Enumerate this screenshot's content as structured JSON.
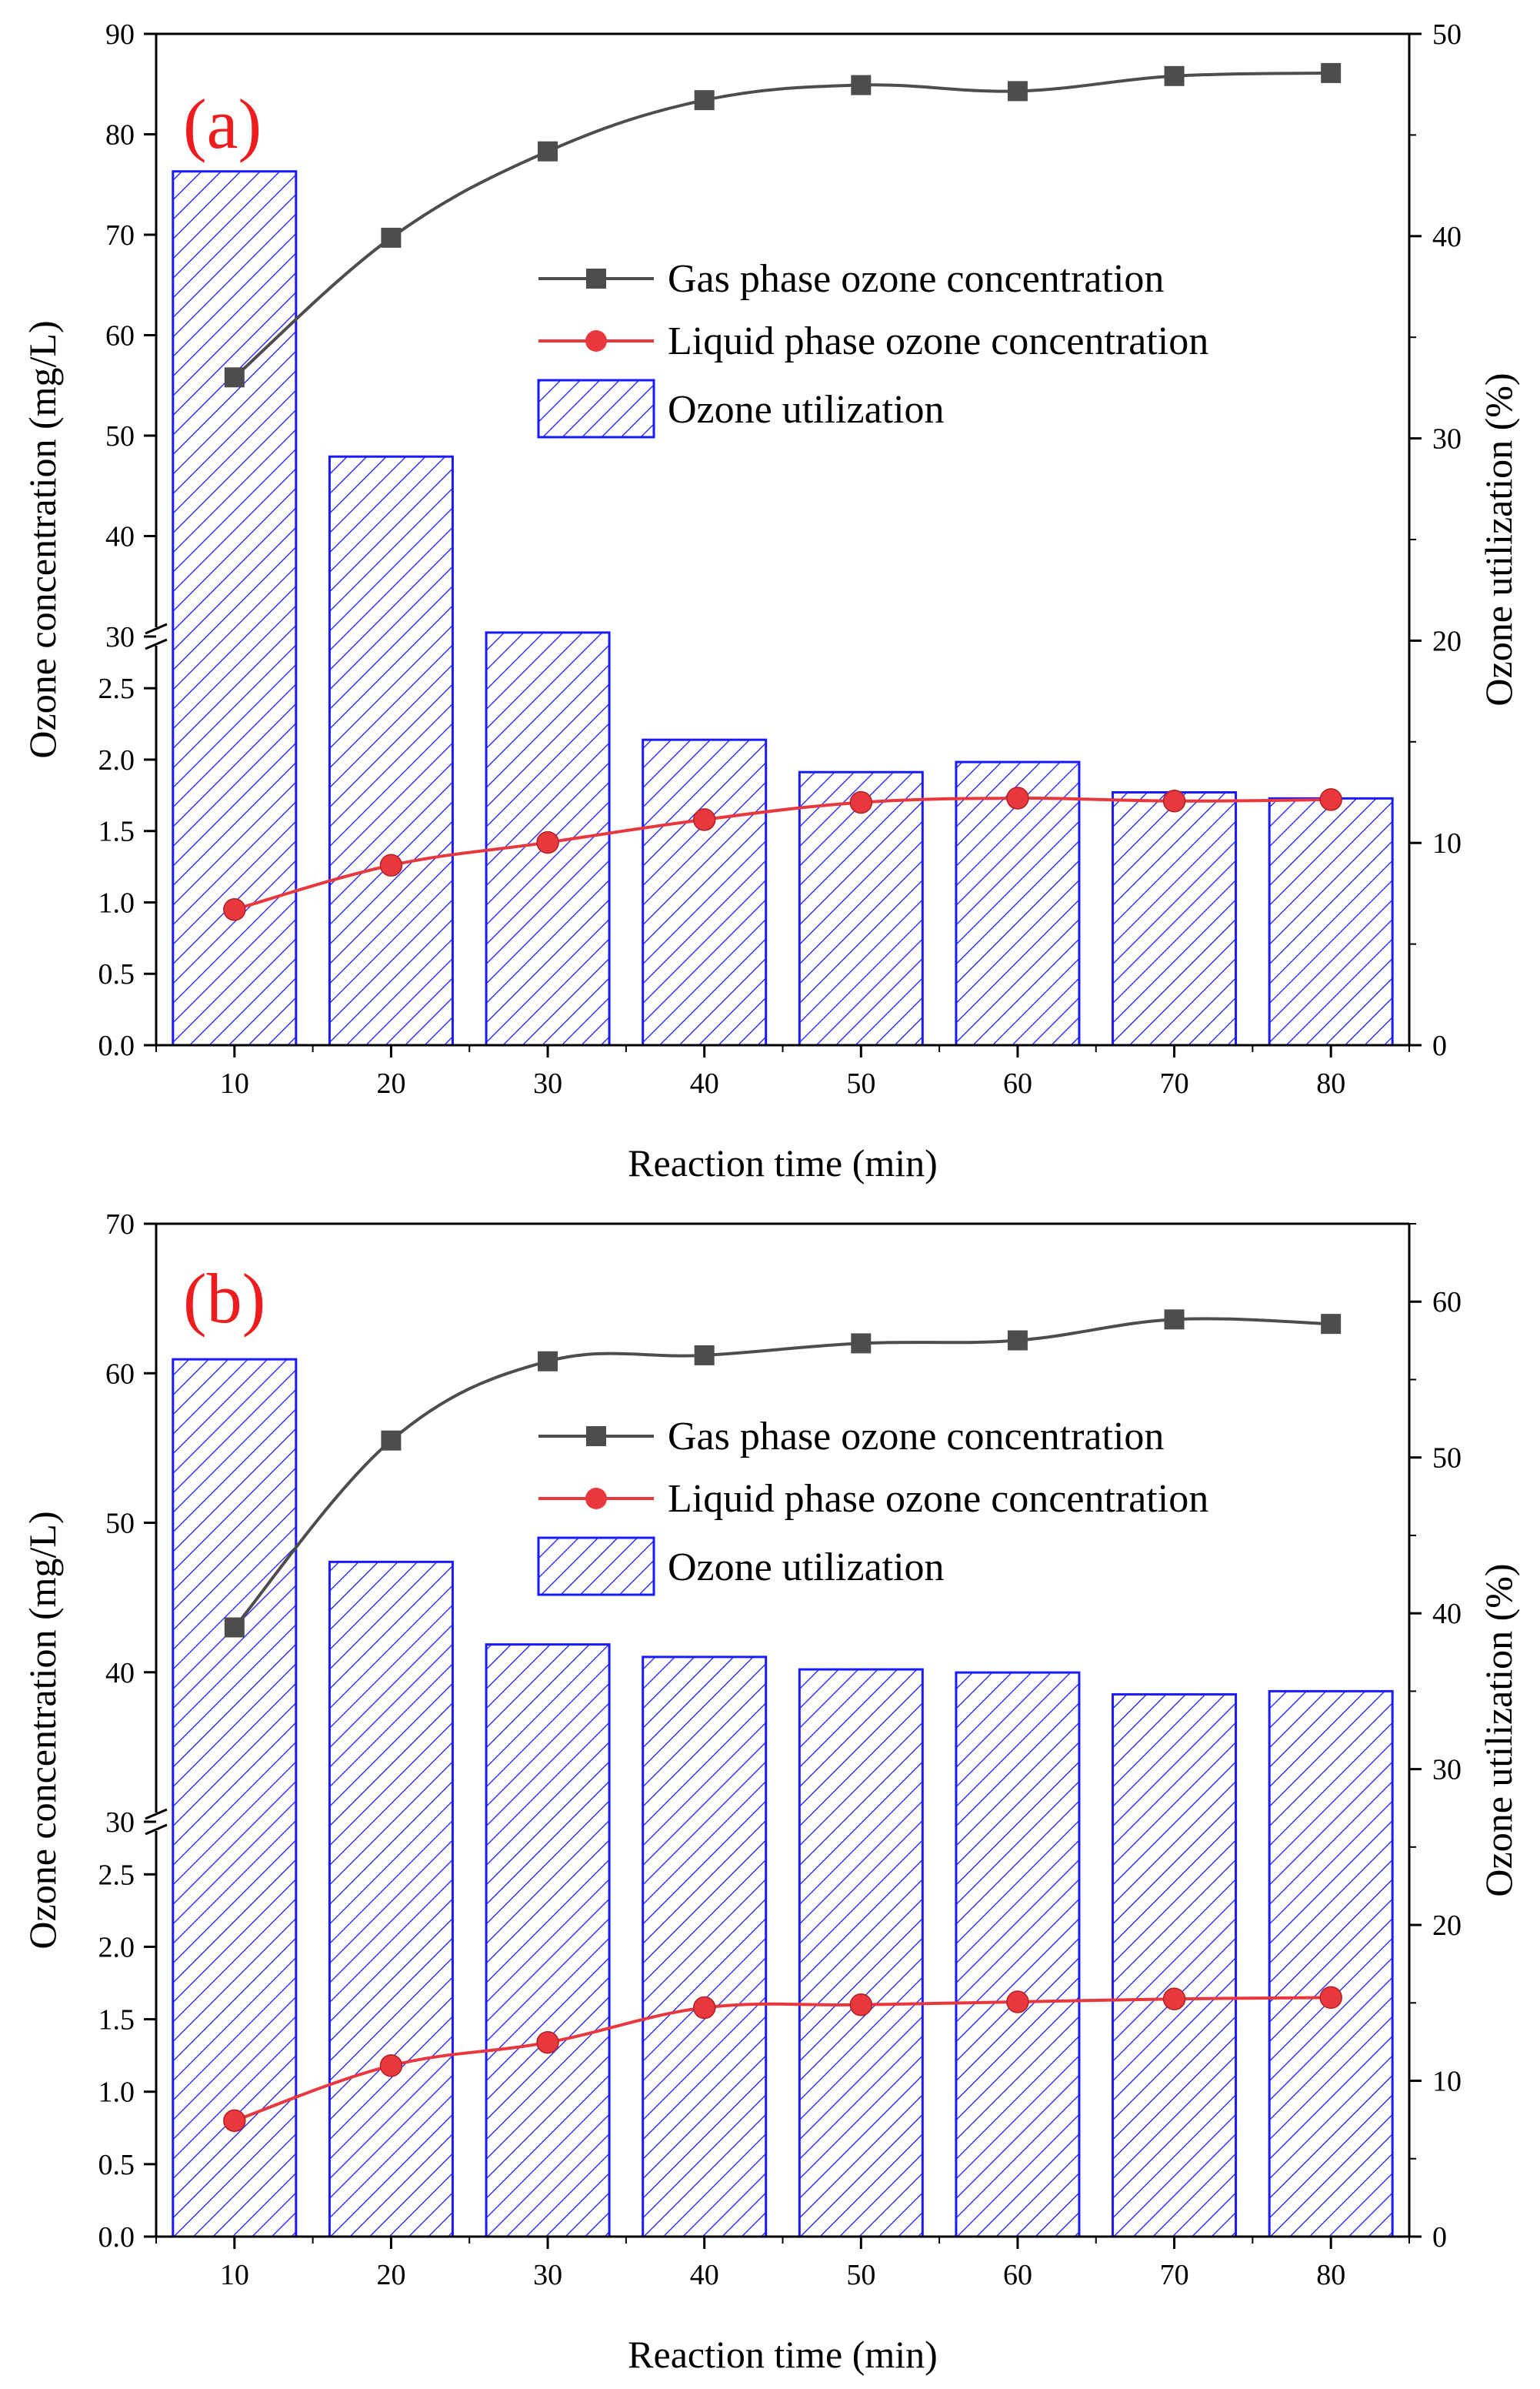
{
  "colors": {
    "gas_line": "#4d4d4d",
    "liquid_line": "#e8383d",
    "bar_edge": "#1a1aff",
    "panel_label": "#ee1c1c",
    "axis": "#000000"
  },
  "chart_data": [
    {
      "panel_label": "(a)",
      "type": "bar+line",
      "xlabel": "Reaction time (min)",
      "ylabel_left": "Ozone concentration (mg/L)",
      "ylabel_right": "Ozone utilization (%)",
      "x": [
        10,
        20,
        30,
        40,
        50,
        60,
        70,
        80
      ],
      "x_tick_labels": [
        "10",
        "20",
        "30",
        "40",
        "50",
        "60",
        "70",
        "80"
      ],
      "left_axis_broken": true,
      "left_lower_ylim": [
        0,
        2.9
      ],
      "left_lower_ticks": [
        "0.0",
        "0.5",
        "1.0",
        "1.5",
        "2.0",
        "2.5"
      ],
      "left_upper_ylim": [
        30,
        90
      ],
      "left_upper_ticks": [
        "30",
        "40",
        "50",
        "60",
        "70",
        "80",
        "90"
      ],
      "right_ylim": [
        0,
        50
      ],
      "right_ticks": [
        "0",
        "10",
        "20",
        "30",
        "40",
        "50"
      ],
      "legend": [
        "Gas phase ozone concentration",
        "Liquid phase ozone concentration",
        "Ozone utilization"
      ],
      "series": [
        {
          "name": "Gas phase ozone concentration",
          "kind": "line",
          "marker": "square",
          "axis": "left-upper",
          "values": [
            55.8,
            69.7,
            78.3,
            83.4,
            84.9,
            84.3,
            85.8,
            86.1
          ]
        },
        {
          "name": "Liquid phase ozone concentration",
          "kind": "line",
          "marker": "circle",
          "axis": "left-lower",
          "values": [
            0.95,
            1.26,
            1.42,
            1.58,
            1.7,
            1.73,
            1.71,
            1.72
          ]
        },
        {
          "name": "Ozone utilization",
          "kind": "bar",
          "hatch": "diagonal",
          "axis": "right",
          "values": [
            43.2,
            29.1,
            20.4,
            15.1,
            13.5,
            14.0,
            12.5,
            12.2
          ]
        }
      ]
    },
    {
      "panel_label": "(b)",
      "type": "bar+line",
      "xlabel": "Reaction time (min)",
      "ylabel_left": "Ozone concentration (mg/L)",
      "ylabel_right": "Ozone utilization (%)",
      "x": [
        10,
        20,
        30,
        40,
        50,
        60,
        70,
        80
      ],
      "x_tick_labels": [
        "10",
        "20",
        "30",
        "40",
        "50",
        "60",
        "70",
        "80"
      ],
      "left_axis_broken": true,
      "left_lower_ylim": [
        0,
        2.9
      ],
      "left_lower_ticks": [
        "0.0",
        "0.5",
        "1.0",
        "1.5",
        "2.0",
        "2.5"
      ],
      "left_upper_ylim": [
        30,
        70
      ],
      "left_upper_ticks": [
        "30",
        "40",
        "50",
        "60",
        "70"
      ],
      "right_ylim": [
        0,
        65
      ],
      "right_ticks": [
        "0",
        "10",
        "20",
        "30",
        "40",
        "50",
        "60"
      ],
      "legend": [
        "Gas phase ozone concentration",
        "Liquid phase ozone concentration",
        "Ozone utilization"
      ],
      "series": [
        {
          "name": "Gas phase ozone concentration",
          "kind": "line",
          "marker": "square",
          "axis": "left-upper",
          "values": [
            43.0,
            55.5,
            60.8,
            61.2,
            62.0,
            62.2,
            63.6,
            63.3
          ]
        },
        {
          "name": "Liquid phase ozone concentration",
          "kind": "line",
          "marker": "circle",
          "axis": "left-lower",
          "values": [
            0.8,
            1.18,
            1.34,
            1.58,
            1.6,
            1.62,
            1.64,
            1.65
          ]
        },
        {
          "name": "Ozone utilization",
          "kind": "bar",
          "hatch": "diagonal",
          "axis": "right",
          "values": [
            56.3,
            43.3,
            38.0,
            37.2,
            36.4,
            36.2,
            34.8,
            35.0
          ]
        }
      ]
    }
  ]
}
